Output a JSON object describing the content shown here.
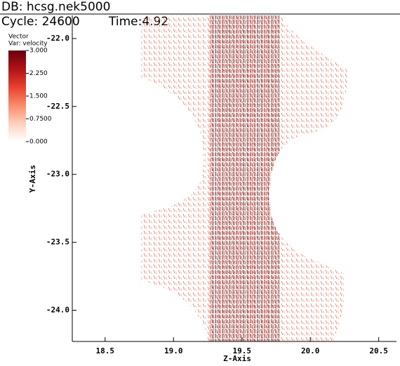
{
  "header": {
    "db": "DB: hcsg.nek5000",
    "cycle": "Cycle: 24600",
    "time": "Time:4.92"
  },
  "chart_data": {
    "type": "vector",
    "xlabel": "Z-Axis",
    "ylabel": "Y-Axis",
    "xlim": [
      18.26,
      20.63
    ],
    "xticks": [
      18.5,
      {
        "value": 19,
        "label": "19.0"
      },
      19.5,
      {
        "value": 20,
        "label": "20.0"
      },
      20.5
    ],
    "ylim": [
      -24.23,
      -21.83
    ],
    "yticks": [
      {
        "value": -22,
        "label": "-22.0"
      },
      -22.5,
      {
        "value": -23,
        "label": "-23.0"
      },
      -23.5,
      {
        "value": -24,
        "label": "-24.0"
      }
    ],
    "legend": {
      "title": "Vector",
      "variable": "Var: velocity",
      "colors": [
        "#67000d",
        "#b11218",
        "#e8402f",
        "#fb8a6a",
        "#fdd0bc",
        "#ffffff"
      ],
      "lim": [
        0,
        3
      ],
      "ticks": [
        {
          "value": 3,
          "label": "3.000"
        },
        {
          "value": 2.25,
          "label": "2.250"
        },
        {
          "value": 1.5,
          "label": "1.500"
        },
        {
          "value": 0.75,
          "label": "0.7500"
        },
        {
          "value": 0,
          "label": "0.000"
        }
      ]
    }
  }
}
